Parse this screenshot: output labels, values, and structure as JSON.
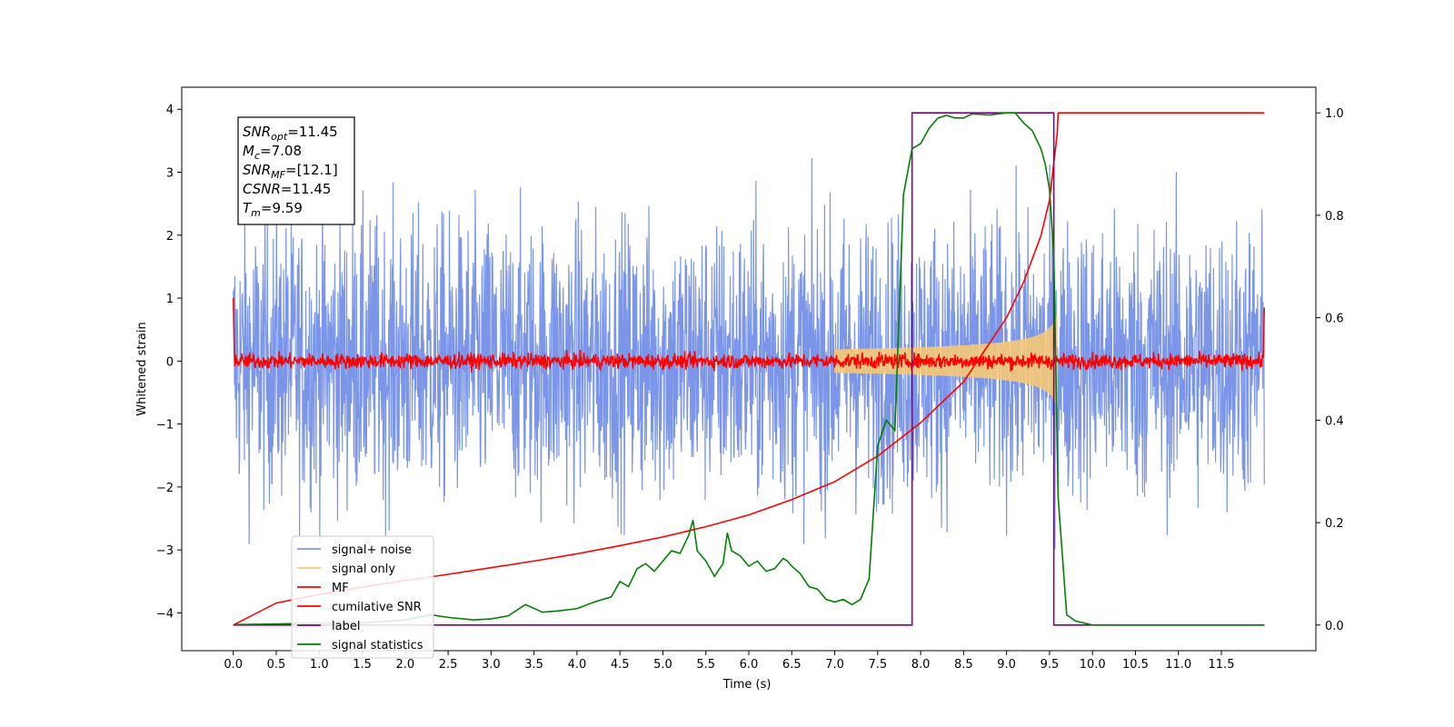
{
  "chart_data": {
    "type": "line",
    "xlabel": "Time (s)",
    "ylabel": "Whitened strain",
    "xlim": [
      -0.6,
      12.6
    ],
    "ylim": [
      -4.6,
      4.35
    ],
    "ylim_right": [
      -0.05,
      1.05
    ],
    "x_ticks": [
      "0.0",
      "0.5",
      "1.0",
      "1.5",
      "2.0",
      "2.5",
      "3.0",
      "3.5",
      "4.0",
      "4.5",
      "5.0",
      "5.5",
      "6.0",
      "6.5",
      "7.0",
      "7.5",
      "8.0",
      "8.5",
      "9.0",
      "9.5",
      "10.0",
      "10.5",
      "11.0",
      "11.5"
    ],
    "y_ticks": [
      "4",
      "3",
      "2",
      "1",
      "0",
      "−1",
      "−2",
      "−3",
      "−4"
    ],
    "y_ticks_right": [
      "1.0",
      "0.8",
      "0.6",
      "0.4",
      "0.2",
      "0.0"
    ],
    "legend_position": "lower-left",
    "annotation": {
      "snr_opt": {
        "base": "SNR",
        "sub": "opt",
        "value": "=11.45"
      },
      "mc": {
        "base": "M",
        "sub": "c",
        "value": "=7.08"
      },
      "snr_mf": {
        "base": "SNR",
        "sub": "MF",
        "value": "=[12.1]"
      },
      "csnr": {
        "base": "CSNR",
        "sub": "",
        "value": "=11.45"
      },
      "tm": {
        "base": "T",
        "sub": "m",
        "value": "=9.59"
      }
    },
    "series": [
      {
        "name": "signal+ noise",
        "color": "#7b96e8",
        "axis": "left",
        "kind": "noise",
        "t_start": 0.0,
        "t_end": 12.0,
        "amplitude": 1.1
      },
      {
        "name": "signal only",
        "color": "#f5c875",
        "axis": "left",
        "kind": "chirp",
        "t_start": 7.0,
        "t_end": 9.59,
        "peak_amplitude": 0.75
      },
      {
        "name": "MF",
        "color": "#ff0000",
        "axis": "left",
        "kind": "noise",
        "t_start": 0.0,
        "t_end": 12.0,
        "amplitude": 0.06
      },
      {
        "name": "cumilative SNR",
        "color": "#ff0000",
        "axis": "right",
        "x": [
          0.0,
          0.5,
          1.0,
          1.5,
          2.0,
          2.5,
          3.0,
          3.5,
          4.0,
          4.5,
          5.0,
          5.5,
          6.0,
          6.5,
          7.0,
          7.5,
          8.0,
          8.5,
          9.0,
          9.2,
          9.4,
          9.5,
          9.59,
          9.6,
          12.0
        ],
        "y": [
          0.0,
          0.043,
          0.06,
          0.074,
          0.087,
          0.099,
          0.112,
          0.125,
          0.139,
          0.155,
          0.172,
          0.192,
          0.215,
          0.245,
          0.28,
          0.33,
          0.395,
          0.475,
          0.6,
          0.67,
          0.76,
          0.83,
          0.96,
          1.0,
          1.0
        ]
      },
      {
        "name": "label",
        "color": "#800080",
        "axis": "right",
        "x": [
          0.0,
          7.9,
          7.9,
          9.55,
          9.55,
          12.0
        ],
        "y": [
          0.0,
          0.0,
          1.0,
          1.0,
          0.0,
          0.0
        ]
      },
      {
        "name": "signal statistics",
        "color": "#008000",
        "axis": "right",
        "x": [
          0.0,
          0.5,
          1.0,
          1.5,
          2.0,
          2.3,
          2.5,
          2.8,
          3.0,
          3.2,
          3.4,
          3.6,
          3.8,
          4.0,
          4.2,
          4.4,
          4.5,
          4.6,
          4.7,
          4.8,
          4.9,
          5.0,
          5.1,
          5.2,
          5.3,
          5.35,
          5.4,
          5.5,
          5.6,
          5.7,
          5.75,
          5.8,
          5.9,
          6.0,
          6.1,
          6.2,
          6.3,
          6.4,
          6.45,
          6.5,
          6.6,
          6.7,
          6.8,
          6.9,
          7.0,
          7.1,
          7.2,
          7.3,
          7.35,
          7.4,
          7.5,
          7.6,
          7.7,
          7.8,
          7.9,
          8.0,
          8.1,
          8.2,
          8.3,
          8.4,
          8.5,
          8.6,
          8.7,
          8.8,
          8.9,
          9.0,
          9.1,
          9.2,
          9.3,
          9.4,
          9.45,
          9.5,
          9.55,
          9.6,
          9.7,
          9.8,
          10.0,
          12.0
        ],
        "y": [
          0.001,
          0.002,
          0.004,
          0.004,
          0.01,
          0.02,
          0.015,
          0.01,
          0.012,
          0.018,
          0.04,
          0.025,
          0.028,
          0.032,
          0.045,
          0.055,
          0.085,
          0.075,
          0.11,
          0.12,
          0.105,
          0.125,
          0.145,
          0.14,
          0.175,
          0.205,
          0.145,
          0.125,
          0.095,
          0.12,
          0.18,
          0.145,
          0.135,
          0.115,
          0.125,
          0.105,
          0.11,
          0.13,
          0.125,
          0.115,
          0.1,
          0.075,
          0.07,
          0.05,
          0.045,
          0.05,
          0.04,
          0.05,
          0.07,
          0.09,
          0.35,
          0.4,
          0.38,
          0.84,
          0.93,
          0.94,
          0.97,
          0.99,
          0.995,
          0.99,
          0.99,
          0.998,
          0.997,
          0.996,
          0.998,
          1.0,
          1.0,
          0.98,
          0.965,
          0.93,
          0.9,
          0.85,
          0.72,
          0.25,
          0.02,
          0.008,
          0.0,
          0.0
        ]
      }
    ]
  }
}
